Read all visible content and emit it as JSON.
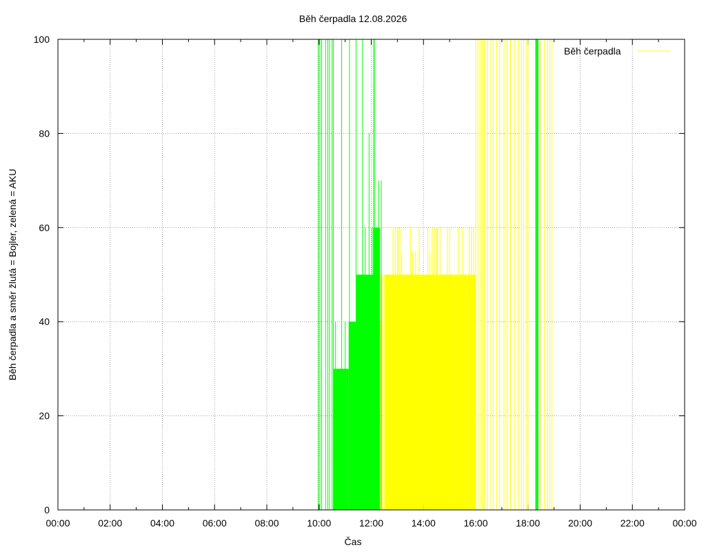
{
  "chart_data": {
    "type": "bar",
    "title": "Běh čerpadla 12.08.2026",
    "xlabel": "Čas",
    "ylabel": "Běh čerpadla a směr žlutá = Bojler, zelená = AKU",
    "xlim": [
      "00:00",
      "24:00"
    ],
    "ylim": [
      0,
      100
    ],
    "x_ticks": [
      "00:00",
      "02:00",
      "04:00",
      "06:00",
      "08:00",
      "10:00",
      "12:00",
      "14:00",
      "16:00",
      "18:00",
      "20:00",
      "22:00",
      "00:00"
    ],
    "y_ticks": [
      0,
      20,
      40,
      60,
      80,
      100
    ],
    "grid": true,
    "legend_position": "top-right",
    "series": [
      {
        "name": "Běh čerpadla",
        "color": "#ffff00",
        "spikes": [
          {
            "t": "12:20",
            "v": 50
          },
          {
            "t": "12:22",
            "v": 40
          },
          {
            "t": "12:25",
            "v": 50
          },
          {
            "t": "12:50",
            "v": 60
          },
          {
            "t": "12:55",
            "v": 60
          },
          {
            "t": "13:00",
            "v": 60
          },
          {
            "t": "13:03",
            "v": 60
          },
          {
            "t": "13:06",
            "v": 60
          },
          {
            "t": "13:10",
            "v": 55
          },
          {
            "t": "13:15",
            "v": 45
          },
          {
            "t": "13:20",
            "v": 45
          },
          {
            "t": "13:22",
            "v": 45
          },
          {
            "t": "13:30",
            "v": 60
          },
          {
            "t": "13:35",
            "v": 55
          },
          {
            "t": "13:42",
            "v": 55
          },
          {
            "t": "13:50",
            "v": 60
          },
          {
            "t": "14:10",
            "v": 60
          },
          {
            "t": "14:15",
            "v": 55
          },
          {
            "t": "14:20",
            "v": 60
          },
          {
            "t": "14:25",
            "v": 60
          },
          {
            "t": "14:30",
            "v": 60
          },
          {
            "t": "14:32",
            "v": 60
          },
          {
            "t": "14:38",
            "v": 60
          },
          {
            "t": "14:55",
            "v": 60
          },
          {
            "t": "15:00",
            "v": 60
          },
          {
            "t": "15:20",
            "v": 60
          },
          {
            "t": "15:30",
            "v": 60
          },
          {
            "t": "15:45",
            "v": 60
          },
          {
            "t": "15:50",
            "v": 60
          },
          {
            "t": "15:55",
            "v": 60
          },
          {
            "t": "16:00",
            "v": 100
          },
          {
            "t": "16:05",
            "v": 100
          },
          {
            "t": "16:10",
            "v": 100
          },
          {
            "t": "16:15",
            "v": 100
          },
          {
            "t": "16:20",
            "v": 100
          },
          {
            "t": "16:27",
            "v": 100
          },
          {
            "t": "16:35",
            "v": 100
          },
          {
            "t": "16:40",
            "v": 100
          },
          {
            "t": "16:48",
            "v": 100
          },
          {
            "t": "16:55",
            "v": 100
          },
          {
            "t": "17:05",
            "v": 100
          },
          {
            "t": "17:12",
            "v": 100
          },
          {
            "t": "17:20",
            "v": 100
          },
          {
            "t": "17:30",
            "v": 100
          },
          {
            "t": "17:38",
            "v": 100
          },
          {
            "t": "17:45",
            "v": 100
          },
          {
            "t": "17:50",
            "v": 100
          },
          {
            "t": "17:56",
            "v": 100
          },
          {
            "t": "18:00",
            "v": 100
          },
          {
            "t": "18:30",
            "v": 100
          },
          {
            "t": "18:38",
            "v": 100
          },
          {
            "t": "18:45",
            "v": 100
          },
          {
            "t": "18:50",
            "v": 100
          },
          {
            "t": "18:55",
            "v": 100
          }
        ],
        "blocks": [
          {
            "from": "12:30",
            "to": "14:00",
            "v": 50
          },
          {
            "from": "14:00",
            "to": "15:10",
            "v": 50
          },
          {
            "from": "15:10",
            "to": "15:38",
            "v": 50
          },
          {
            "from": "15:38",
            "to": "16:00",
            "v": 50
          }
        ]
      },
      {
        "color": "#00ff00",
        "spikes": [
          {
            "t": "09:58",
            "v": 100
          },
          {
            "t": "10:02",
            "v": 100
          },
          {
            "t": "10:06",
            "v": 100
          },
          {
            "t": "10:15",
            "v": 100
          },
          {
            "t": "10:20",
            "v": 100
          },
          {
            "t": "10:24",
            "v": 100
          },
          {
            "t": "10:30",
            "v": 100
          },
          {
            "t": "10:33",
            "v": 100
          },
          {
            "t": "10:38",
            "v": 40
          },
          {
            "t": "10:52",
            "v": 100
          },
          {
            "t": "11:00",
            "v": 40
          },
          {
            "t": "11:10",
            "v": 100
          },
          {
            "t": "11:15",
            "v": 40
          },
          {
            "t": "11:25",
            "v": 100
          },
          {
            "t": "11:30",
            "v": 50
          },
          {
            "t": "11:40",
            "v": 100
          },
          {
            "t": "11:46",
            "v": 60
          },
          {
            "t": "11:55",
            "v": 80
          },
          {
            "t": "12:02",
            "v": 60
          },
          {
            "t": "12:05",
            "v": 100
          },
          {
            "t": "12:08",
            "v": 100
          },
          {
            "t": "12:12",
            "v": 60
          },
          {
            "t": "12:17",
            "v": 70
          },
          {
            "t": "12:23",
            "v": 70
          }
        ],
        "blocks": [
          {
            "from": "10:33",
            "to": "11:08",
            "v": 30
          },
          {
            "from": "11:08",
            "to": "11:26",
            "v": 40
          },
          {
            "from": "11:26",
            "to": "12:05",
            "v": 50
          },
          {
            "from": "12:05",
            "to": "12:20",
            "v": 60
          },
          {
            "from": "18:17",
            "to": "18:24",
            "v": 100
          }
        ]
      }
    ]
  }
}
